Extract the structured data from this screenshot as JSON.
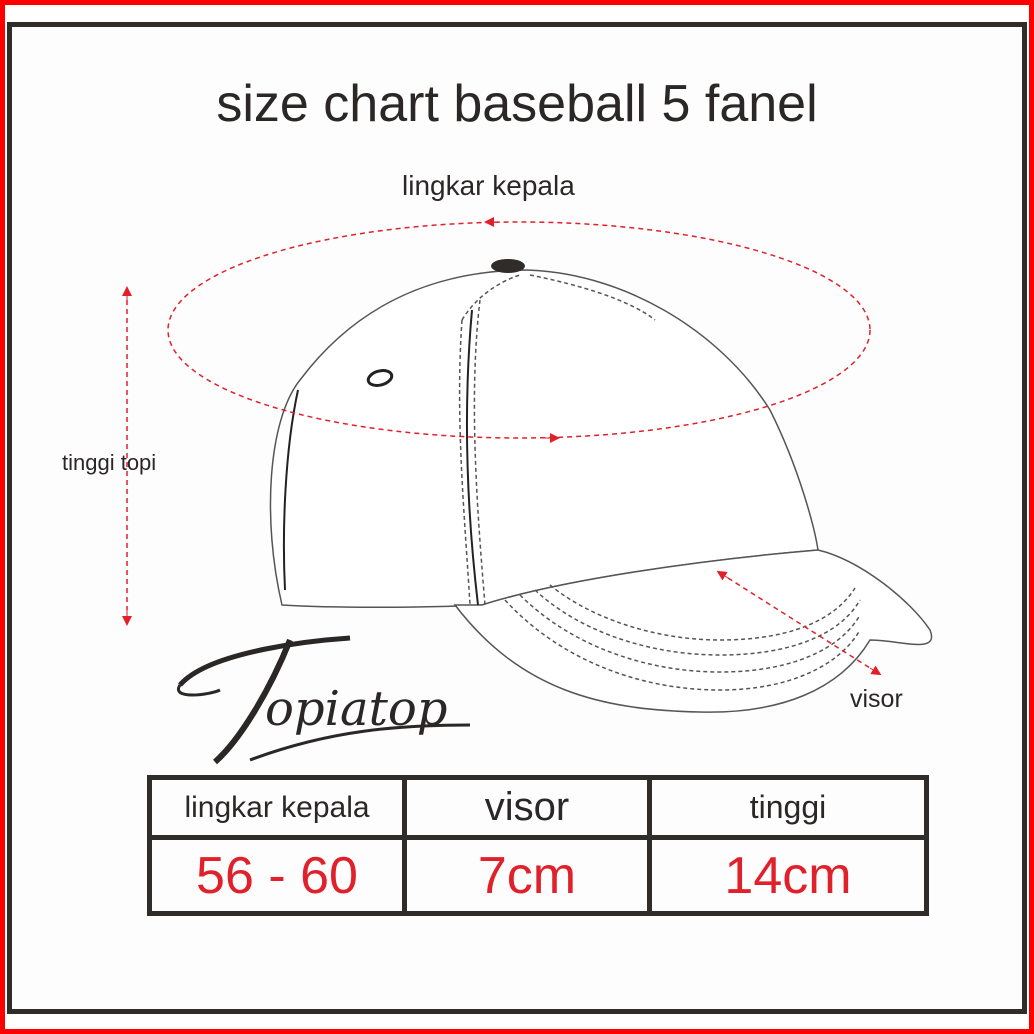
{
  "title": "size chart baseball 5 fanel",
  "labels": {
    "circumference": "lingkar kepala",
    "height": "tinggi topi",
    "visor": "visor"
  },
  "logo": {
    "text": "Topiatop"
  },
  "table": {
    "headers": [
      "lingkar kepala",
      "visor",
      "tinggi"
    ],
    "values": [
      "56 - 60",
      "7cm",
      "14cm"
    ]
  },
  "colors": {
    "accent": "#e0202a",
    "frame": "#302c2a",
    "outer_border": "#ff0000"
  }
}
